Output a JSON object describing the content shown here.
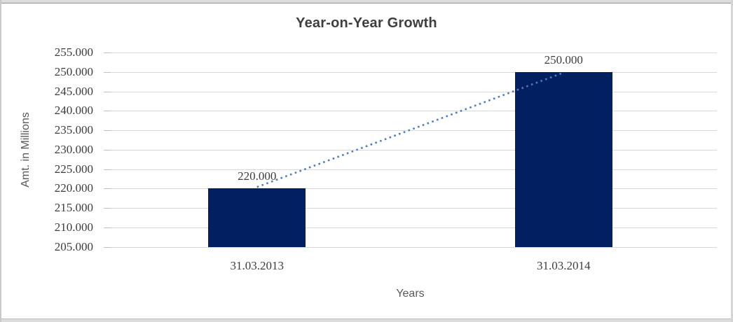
{
  "chart_data": {
    "type": "bar",
    "title": "Year-on-Year Growth",
    "xlabel": "Years",
    "ylabel": "Amt. in Millions",
    "categories": [
      "31.03.2013",
      "31.03.2014"
    ],
    "values": [
      220000,
      250000
    ],
    "value_labels": [
      "220.000",
      "250.000"
    ],
    "ylim": [
      205000,
      255000
    ],
    "ytick_step": 5000,
    "ytick_labels_top_to_bottom": [
      "255.000",
      "250.000",
      "245.000",
      "240.000",
      "235.000",
      "230.000",
      "225.000",
      "220.000",
      "215.000",
      "210.000",
      "205.000"
    ],
    "grid": true,
    "legend": "none",
    "trendline": {
      "type": "linear",
      "style": "dotted",
      "connects": [
        "220.000",
        "250.000"
      ]
    },
    "colors": {
      "bar": "#02205f",
      "trendline": "#4a7ebc",
      "gridline": "#d9d9d9",
      "tick_mark": "#c0c0c0",
      "title_text": "#3f3f3f",
      "value_text": "#3d3d3d",
      "axis_title_text": "#595959"
    }
  }
}
